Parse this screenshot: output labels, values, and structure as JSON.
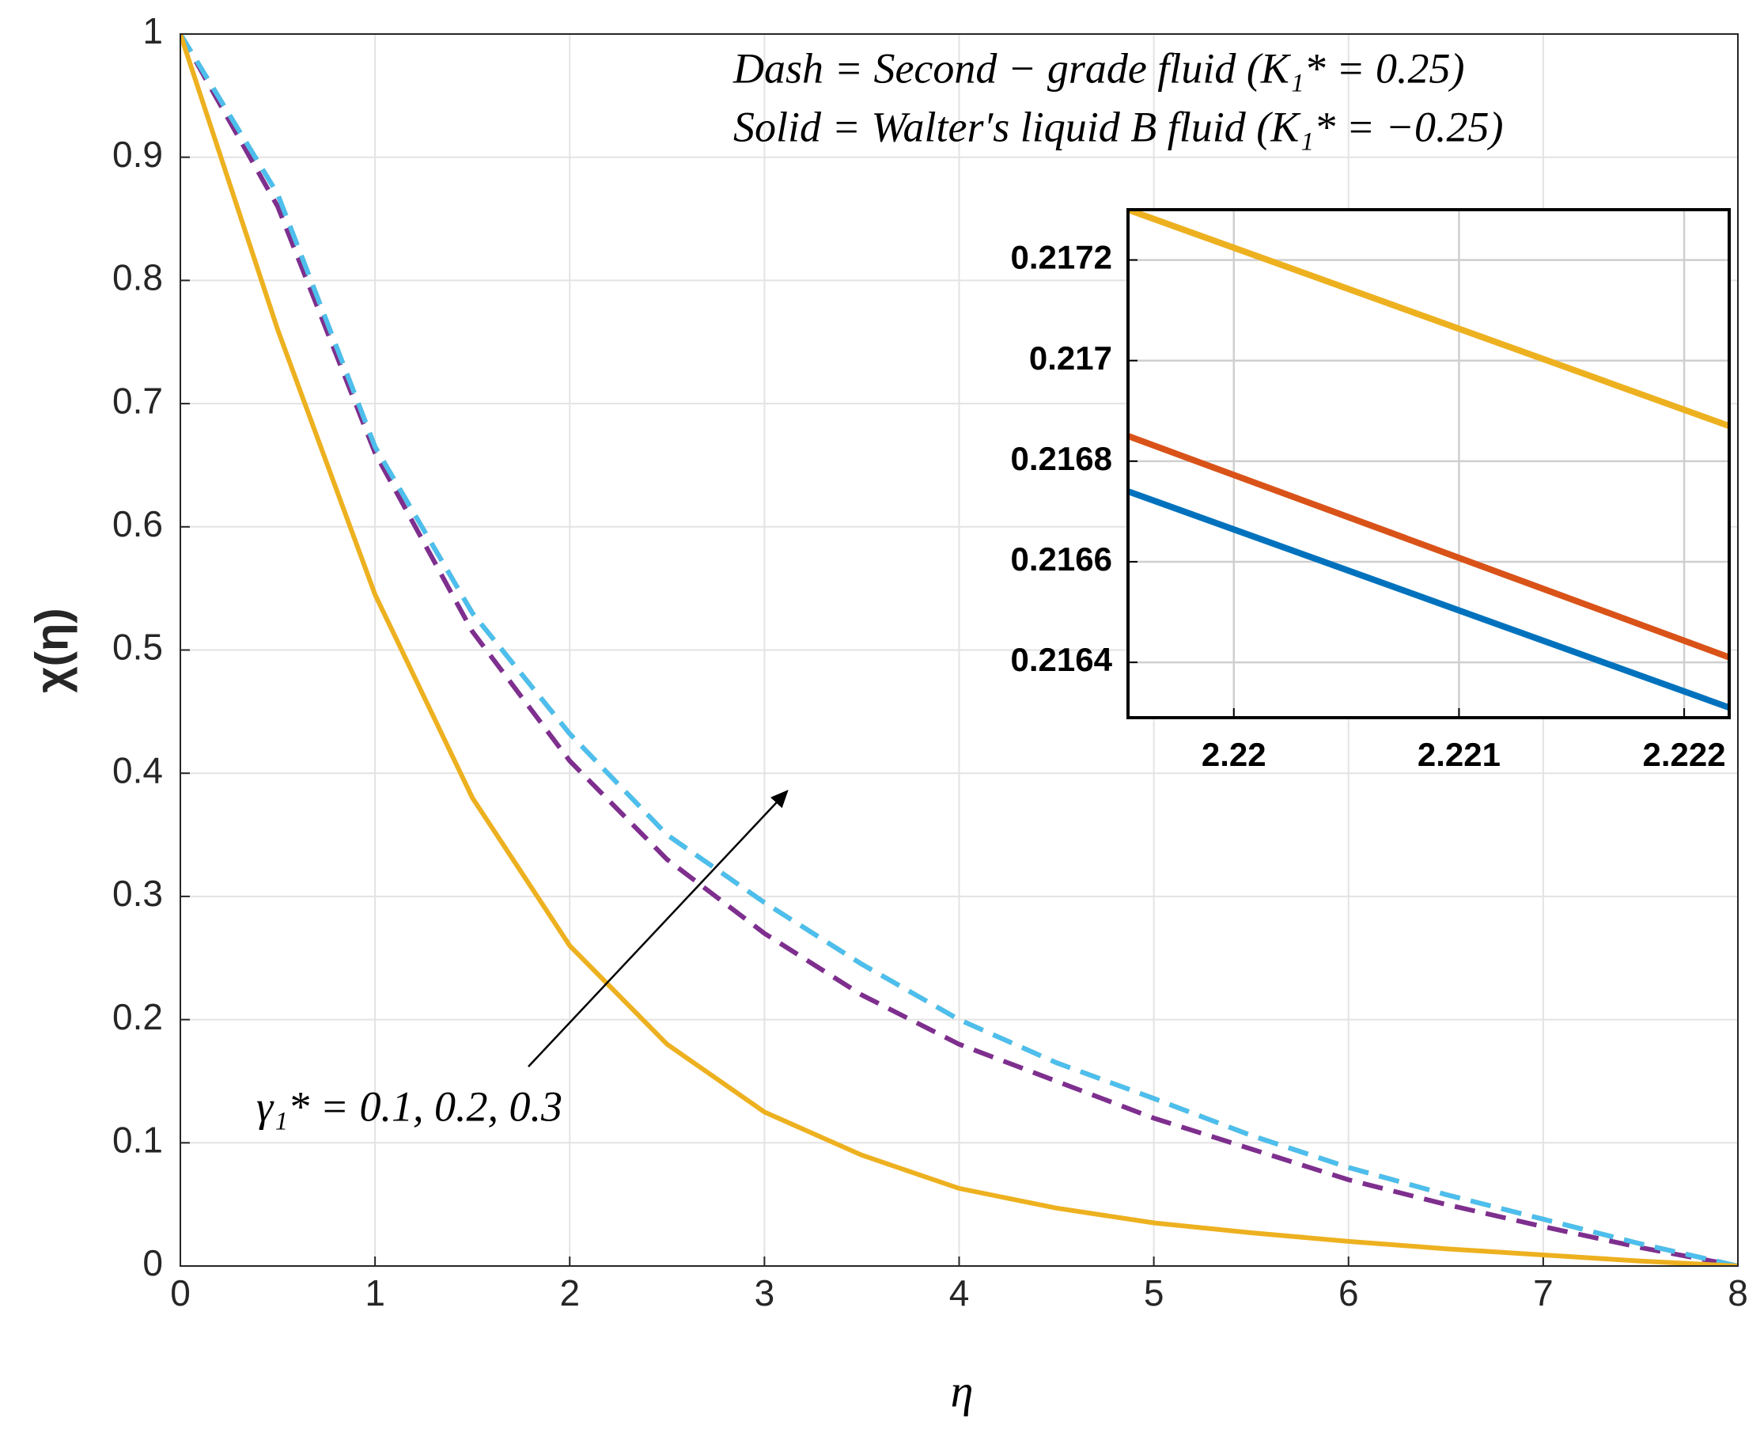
{
  "chart_data": [
    {
      "type": "line",
      "x_label": "η",
      "y_label": "χ(η)",
      "annotations": [
        "Dash = Second − grade fluid (K₁* = 0.25)",
        "Solid = Walter′s liquid B fluid (K₁* = −0.25)",
        "γ₁* = 0.1, 0.2, 0.3"
      ],
      "x": [
        0,
        0.5,
        1,
        1.5,
        2,
        2.5,
        3,
        3.5,
        4,
        4.5,
        5,
        5.5,
        6,
        6.5,
        7,
        7.5,
        8
      ],
      "series": [
        {
          "color": "#7e2f8e",
          "dash": true,
          "values": [
            1,
            0.86,
            0.66,
            0.515,
            0.41,
            0.33,
            0.27,
            0.22,
            0.18,
            0.15,
            0.12,
            0.095,
            0.07,
            0.05,
            0.032,
            0.015,
            0
          ]
        },
        {
          "color": "#77ac30",
          "dash": true,
          "values": [
            1,
            0.87,
            0.665,
            0.53,
            0.432,
            0.35,
            0.295,
            0.245,
            0.2,
            0.165,
            0.136,
            0.106,
            0.08,
            0.058,
            0.038,
            0.018,
            0
          ]
        },
        {
          "color": "#4dbeee",
          "dash": true,
          "values": [
            1,
            0.87,
            0.665,
            0.53,
            0.432,
            0.35,
            0.295,
            0.245,
            0.2,
            0.165,
            0.136,
            0.106,
            0.08,
            0.058,
            0.038,
            0.018,
            0
          ]
        },
        {
          "color": "#edb120",
          "dash": false,
          "values": [
            1,
            0.76,
            0.545,
            0.38,
            0.26,
            0.18,
            0.125,
            0.09,
            0.063,
            0.047,
            0.035,
            0.027,
            0.02,
            0.014,
            0.009,
            0.004,
            0
          ]
        }
      ],
      "xlim": [
        0,
        8
      ],
      "ylim": [
        0,
        1
      ],
      "xticks": [
        0,
        1,
        2,
        3,
        4,
        5,
        6,
        7,
        8
      ],
      "yticks": [
        0,
        0.1,
        0.2,
        0.3,
        0.4,
        0.5,
        0.6,
        0.7,
        0.8,
        0.9,
        1
      ],
      "grid": true
    },
    {
      "type": "line",
      "x": [
        2.21953,
        2.2222
      ],
      "series": [
        {
          "color": "#0072bd",
          "dash": false,
          "values": [
            0.21674,
            0.21631
          ]
        },
        {
          "color": "#d95319",
          "dash": false,
          "values": [
            0.21685,
            0.21641
          ]
        },
        {
          "color": "#edb120",
          "dash": false,
          "values": [
            0.2173,
            0.21687
          ]
        }
      ],
      "xlim": [
        2.21953,
        2.2222
      ],
      "ylim": [
        0.21629,
        0.2173
      ],
      "xticks": [
        2.22,
        2.221,
        2.222
      ],
      "yticks": [
        0.2164,
        0.2166,
        0.2168,
        0.217,
        0.2172
      ],
      "grid": true
    }
  ]
}
